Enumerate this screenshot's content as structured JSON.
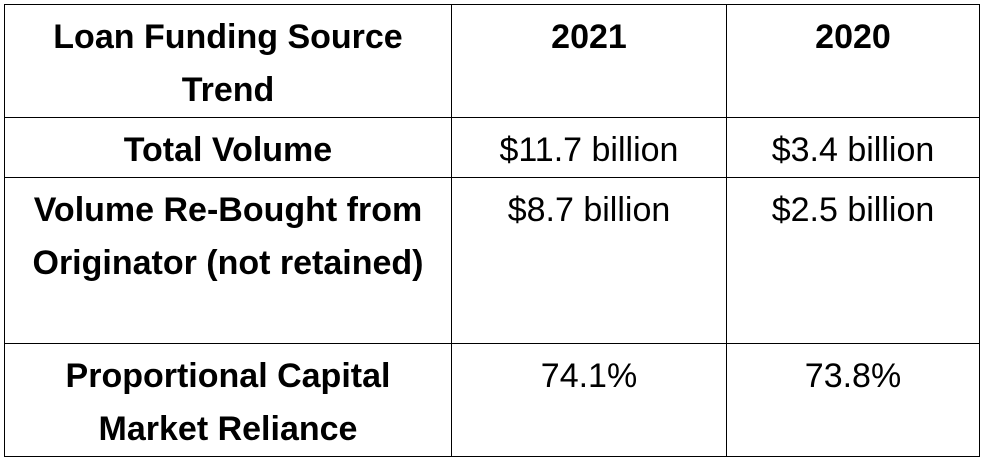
{
  "table": {
    "header": {
      "label": "Loan Funding Source Trend",
      "year_a": "2021",
      "year_b": "2020"
    },
    "rows": [
      {
        "label": "Total Volume",
        "value_a": "$11.7 billion",
        "value_b": "$3.4 billion"
      },
      {
        "label": "Volume Re-Bought from Originator (not retained)",
        "value_a": "$8.7 billion",
        "value_b": "$2.5 billion"
      },
      {
        "label": "Proportional Capital Market Reliance",
        "value_a": "74.1%",
        "value_b": "73.8%"
      }
    ]
  }
}
